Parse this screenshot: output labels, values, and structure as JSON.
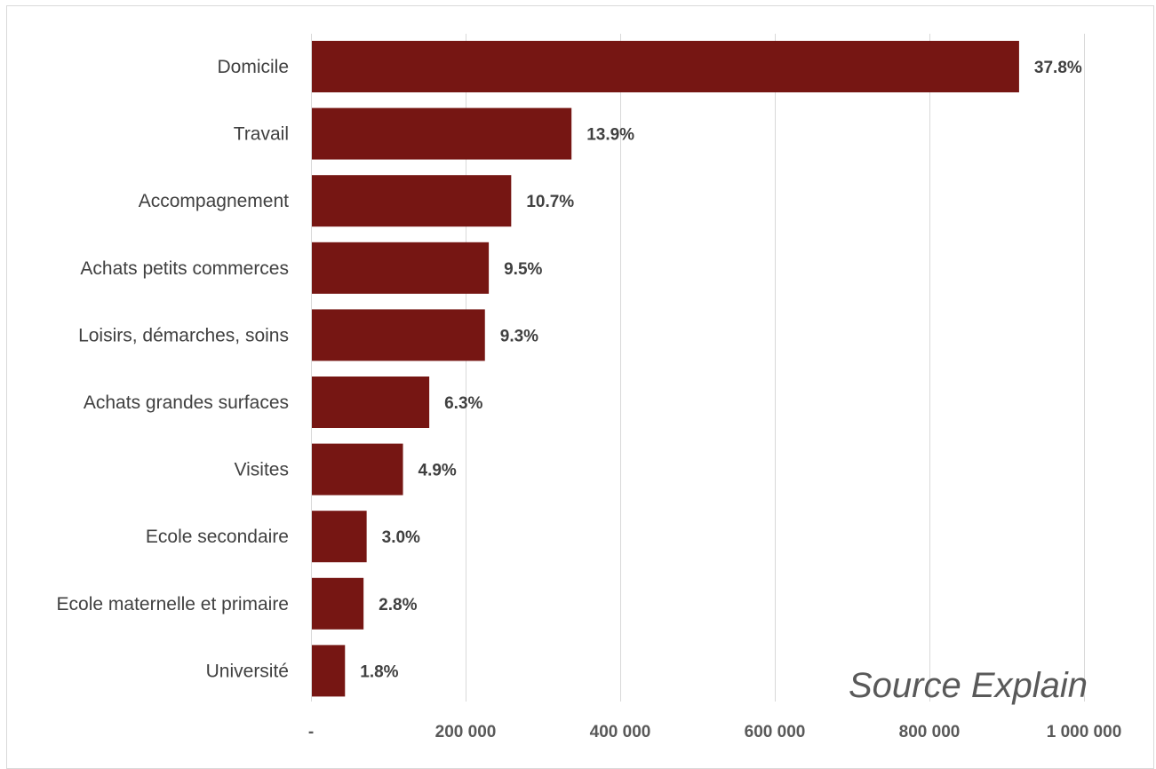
{
  "chart_data": {
    "type": "bar",
    "orientation": "horizontal",
    "title": "",
    "xlabel": "",
    "ylabel": "",
    "categories": [
      "Domicile",
      "Travail",
      "Accompagnement",
      "Achats petits commerces",
      "Loisirs, démarches, soins",
      "Achats grandes surfaces",
      "Visites",
      "Ecole secondaire",
      "Ecole maternelle et primaire",
      "Université"
    ],
    "values": [
      916000,
      337000,
      259000,
      230000,
      225000,
      153000,
      119000,
      72000,
      68000,
      44000
    ],
    "data_labels": [
      "37.8%",
      "13.9%",
      "10.7%",
      "9.5%",
      "9.3%",
      "6.3%",
      "4.9%",
      "3.0%",
      "2.8%",
      "1.8%"
    ],
    "xlim": [
      0,
      1000000
    ],
    "xticks": [
      0,
      200000,
      400000,
      600000,
      800000,
      1000000
    ],
    "xtick_labels": [
      "-",
      "200 000",
      "400 000",
      "600 000",
      "800 000",
      "1 000 000"
    ],
    "grid": "vertical",
    "legend": "none",
    "bar_color": "#761613"
  },
  "source_text": "Source Explain"
}
